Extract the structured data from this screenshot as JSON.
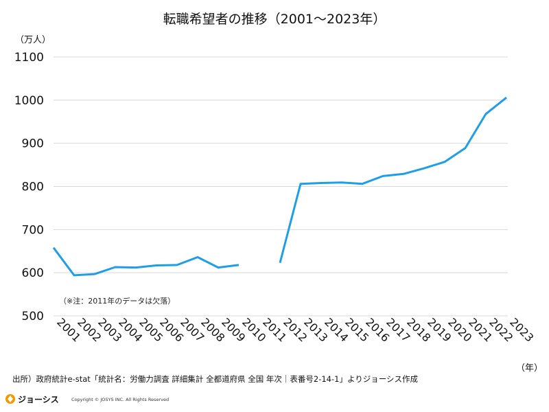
{
  "chart_data": {
    "type": "line",
    "title": "転職希望者の推移（2001〜2023年）",
    "ylabel": "（万人）",
    "xlabel": "（年）",
    "ylim": [
      500,
      1100
    ],
    "yticks": [
      "500",
      "600",
      "700",
      "800",
      "900",
      "1000",
      "1100"
    ],
    "grid": "horizontal",
    "categories": [
      "2001",
      "2002",
      "2003",
      "2004",
      "2005",
      "2006",
      "2007",
      "2008",
      "2009",
      "2010",
      "2011",
      "2012",
      "2013",
      "2014",
      "2015",
      "2016",
      "2017",
      "2018",
      "2019",
      "2020",
      "2021",
      "2022",
      "2023"
    ],
    "series": [
      {
        "color": "#1e9ee8",
        "values": [
          658,
          594,
          597,
          613,
          612,
          617,
          618,
          636,
          612,
          618,
          null,
          623,
          806,
          808,
          809,
          806,
          824,
          829,
          842,
          857,
          889,
          968,
          1006
        ]
      }
    ],
    "annotation": "（※注：2011年のデータは欠落）"
  },
  "footer": {
    "source": "出所）政府統計e-stat「統計名：労働力調査 詳細集計 全都道府県 全国 年次｜表番号2-14-1」よりジョーシス作成",
    "brand": "ジョーシス",
    "copyright": "Copyright  ©  JOSYS  INC.  All  Rights  Reserved"
  }
}
